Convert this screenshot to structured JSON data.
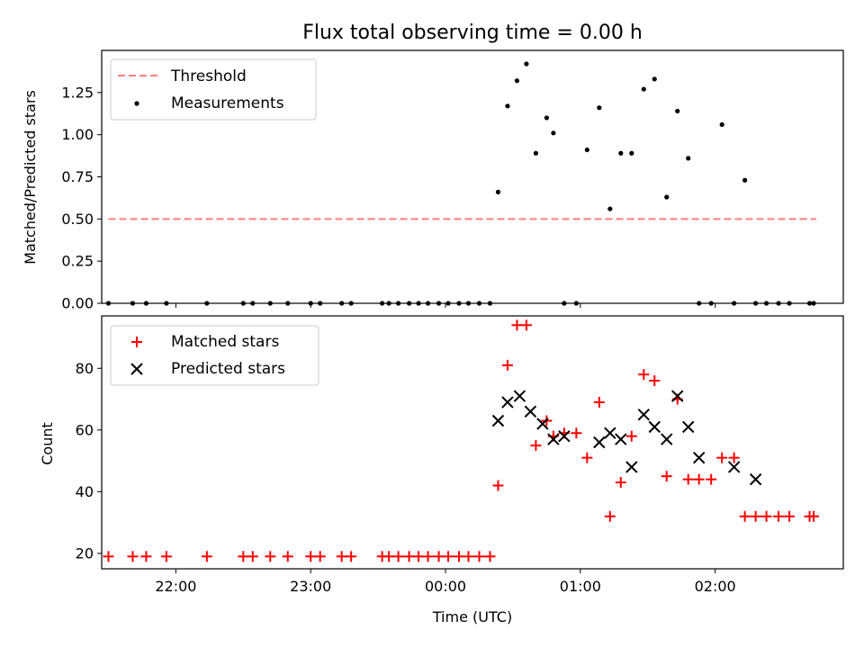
{
  "chart_data": [
    {
      "type": "scatter",
      "title": "Flux total observing time = 0.00 h",
      "ylabel": "Matched/Predicted stars",
      "xlabel": "",
      "xlim_hours": [
        -2.55,
        2.95
      ],
      "ylim": [
        0,
        1.5
      ],
      "yticks": [
        0.0,
        0.25,
        0.5,
        0.75,
        1.0,
        1.25
      ],
      "ytick_labels": [
        "0.00",
        "0.25",
        "0.50",
        "0.75",
        "1.00",
        "1.25"
      ],
      "grid": false,
      "legend_placement": "top-left",
      "threshold": {
        "name": "Threshold",
        "value": 0.5,
        "x_range_hours": [
          -2.5,
          2.75
        ],
        "color": "#ff7f7f",
        "style": "dashed"
      },
      "series": [
        {
          "name": "Measurements",
          "marker": "dot",
          "color": "#000000",
          "x_hours": [
            -2.5,
            -2.32,
            -2.22,
            -2.07,
            -1.77,
            -1.5,
            -1.43,
            -1.3,
            -1.17,
            -1.0,
            -0.93,
            -0.77,
            -0.7,
            -0.47,
            -0.42,
            -0.35,
            -0.27,
            -0.2,
            -0.13,
            -0.05,
            0.02,
            0.1,
            0.17,
            0.25,
            0.33,
            0.39,
            0.46,
            0.53,
            0.6,
            0.67,
            0.75,
            0.8,
            0.88,
            0.97,
            1.05,
            1.14,
            1.22,
            1.3,
            1.38,
            1.47,
            1.55,
            1.64,
            1.72,
            1.8,
            1.88,
            1.97,
            2.05,
            2.14,
            2.22,
            2.3,
            2.38,
            2.47,
            2.55,
            2.7,
            2.73
          ],
          "values": [
            0,
            0,
            0,
            0,
            0,
            0,
            0,
            0,
            0,
            0,
            0,
            0,
            0,
            0,
            0,
            0,
            0,
            0,
            0,
            0,
            0,
            0,
            0,
            0,
            0,
            0.66,
            1.17,
            1.32,
            1.42,
            0.89,
            1.1,
            1.01,
            0,
            0,
            0.91,
            1.16,
            0.56,
            0.89,
            0.89,
            1.27,
            1.33,
            0.63,
            1.14,
            0.86,
            0,
            0,
            1.06,
            0,
            0.73,
            0,
            0,
            0,
            0,
            0,
            0
          ]
        }
      ]
    },
    {
      "type": "scatter",
      "title": "",
      "ylabel": "Count",
      "xlabel": "Time (UTC)",
      "xlim_hours": [
        -2.55,
        2.95
      ],
      "xticks_hours": [
        -2,
        -1,
        0,
        1,
        2
      ],
      "xtick_labels": [
        "22:00",
        "23:00",
        "00:00",
        "01:00",
        "02:00"
      ],
      "ylim": [
        15,
        97
      ],
      "yticks": [
        20,
        40,
        60,
        80
      ],
      "ytick_labels": [
        "20",
        "40",
        "60",
        "80"
      ],
      "grid": false,
      "legend_placement": "top-left",
      "series": [
        {
          "name": "Matched stars",
          "marker": "plus",
          "color": "#ff0000",
          "x_hours": [
            -2.5,
            -2.32,
            -2.22,
            -2.07,
            -1.77,
            -1.5,
            -1.43,
            -1.3,
            -1.17,
            -1.0,
            -0.93,
            -0.77,
            -0.7,
            -0.47,
            -0.42,
            -0.35,
            -0.27,
            -0.2,
            -0.13,
            -0.05,
            0.02,
            0.1,
            0.17,
            0.25,
            0.33,
            0.39,
            0.46,
            0.53,
            0.6,
            0.67,
            0.75,
            0.8,
            0.88,
            0.97,
            1.05,
            1.14,
            1.22,
            1.3,
            1.38,
            1.47,
            1.55,
            1.64,
            1.72,
            1.8,
            1.88,
            1.97,
            2.05,
            2.14,
            2.22,
            2.3,
            2.38,
            2.47,
            2.55,
            2.7,
            2.73
          ],
          "values": [
            19,
            19,
            19,
            19,
            19,
            19,
            19,
            19,
            19,
            19,
            19,
            19,
            19,
            19,
            19,
            19,
            19,
            19,
            19,
            19,
            19,
            19,
            19,
            19,
            19,
            42,
            81,
            94,
            94,
            55,
            63,
            58,
            59,
            59,
            51,
            69,
            32,
            43,
            58,
            78,
            76,
            45,
            70,
            44,
            44,
            44,
            51,
            51,
            32,
            32,
            32,
            32,
            32,
            32,
            32
          ]
        },
        {
          "name": "Predicted stars",
          "marker": "x",
          "color": "#000000",
          "x_hours": [
            0.39,
            0.46,
            0.55,
            0.63,
            0.72,
            0.8,
            0.88,
            1.14,
            1.22,
            1.3,
            1.38,
            1.47,
            1.55,
            1.64,
            1.72,
            1.8,
            1.88,
            2.14,
            2.3
          ],
          "values": [
            63,
            69,
            71,
            66,
            62,
            57,
            58,
            56,
            59,
            57,
            48,
            65,
            61,
            57,
            71,
            61,
            51,
            48,
            44
          ]
        }
      ]
    }
  ]
}
